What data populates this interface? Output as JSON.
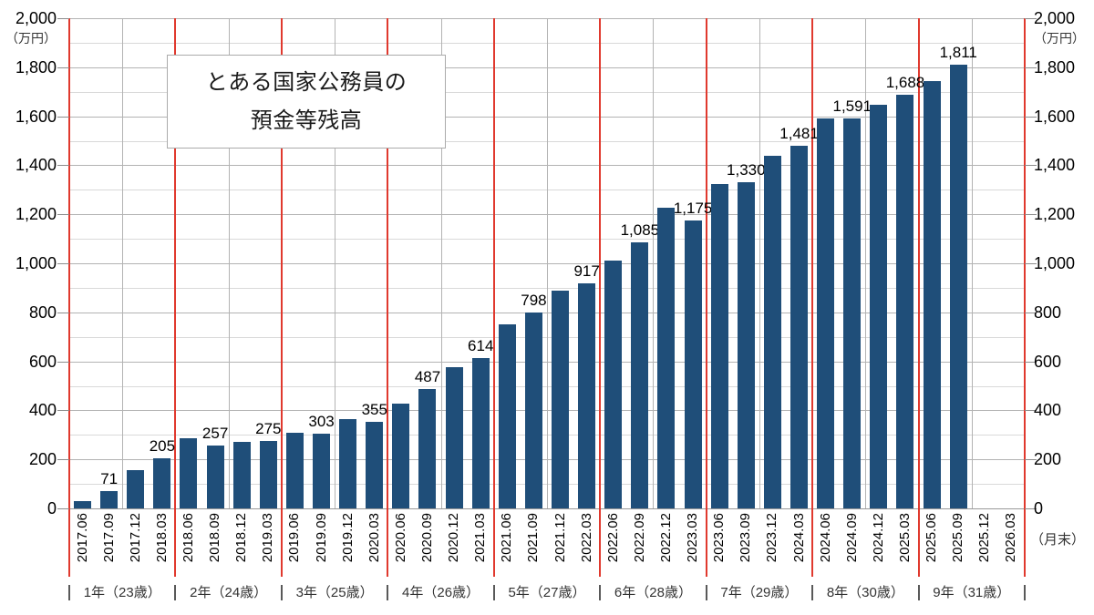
{
  "title": {
    "line1": "とある国家公務員の",
    "line2": "預金等残高"
  },
  "axis_units": {
    "left_unit": "（万円）",
    "right_unit": "（万円）",
    "x_unit": "（月末）"
  },
  "chart_data": {
    "type": "bar",
    "title": "とある国家公務員の預金等残高",
    "ylabel": "万円",
    "xlabel": "月末",
    "ylim": [
      0,
      2000
    ],
    "y_major_interval": 200,
    "y_minor_interval": 100,
    "legend": "none",
    "grid": "on",
    "bar_color": "#1f4e79",
    "fiscal_year_separator_color": "#e0392e",
    "categories": [
      "2017.06",
      "2017.09",
      "2017.12",
      "2018.03",
      "2018.06",
      "2018.09",
      "2018.12",
      "2019.03",
      "2019.06",
      "2019.09",
      "2019.12",
      "2020.03",
      "2020.06",
      "2020.09",
      "2020.12",
      "2021.03",
      "2021.06",
      "2021.09",
      "2021.12",
      "2022.03",
      "2022.06",
      "2022.09",
      "2022.12",
      "2023.03",
      "2023.06",
      "2023.09",
      "2023.12",
      "2024.03",
      "2024.06",
      "2024.09",
      "2024.12",
      "2025.03",
      "2025.06",
      "2025.09",
      "2025.12",
      "2026.03"
    ],
    "values": [
      30,
      71,
      155,
      205,
      285,
      257,
      270,
      275,
      310,
      303,
      365,
      355,
      428,
      487,
      577,
      614,
      750,
      798,
      890,
      917,
      1010,
      1085,
      1225,
      1175,
      1325,
      1330,
      1440,
      1481,
      1590,
      1591,
      1645,
      1688,
      1745,
      1811,
      null,
      null
    ],
    "data_labels": [
      null,
      "71",
      null,
      "205",
      null,
      "257",
      null,
      "275",
      null,
      "303",
      null,
      "355",
      null,
      "487",
      null,
      "614",
      null,
      "798",
      null,
      "917",
      null,
      "1,085",
      null,
      "1,175",
      null,
      "1,330",
      null,
      "1,481",
      null,
      "1,591",
      null,
      "1,688",
      null,
      "1,811",
      null,
      null
    ],
    "y_tick_labels": [
      "0",
      "200",
      "400",
      "600",
      "800",
      "1,000",
      "1,200",
      "1,400",
      "1,600",
      "1,800",
      "2,000"
    ],
    "year_groups": [
      {
        "label": "1年（23歳）",
        "span": 4
      },
      {
        "label": "2年（24歳）",
        "span": 4
      },
      {
        "label": "3年（25歳）",
        "span": 4
      },
      {
        "label": "4年（26歳）",
        "span": 4
      },
      {
        "label": "5年（27歳）",
        "span": 4
      },
      {
        "label": "6年（28歳）",
        "span": 4
      },
      {
        "label": "7年（29歳）",
        "span": 4
      },
      {
        "label": "8年（30歳）",
        "span": 4
      },
      {
        "label": "9年（31歳）",
        "span": 4
      }
    ]
  },
  "colors": {
    "bar": "#1f4e79",
    "red_line": "#e0392e",
    "grid_major": "#b3b3b3",
    "grid_minor": "#d9d9d9",
    "axis_line": "#9a9a9a",
    "text": "#000000",
    "muted_text": "#333333"
  }
}
